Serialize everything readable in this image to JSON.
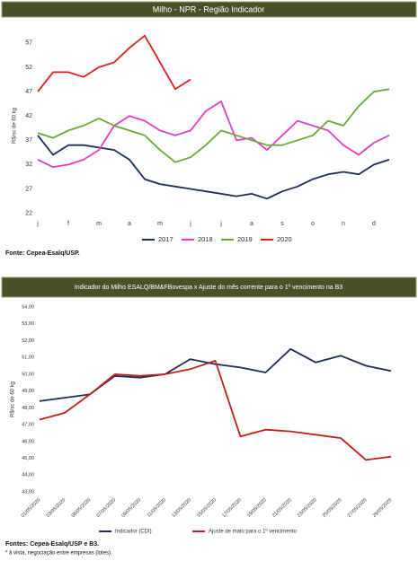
{
  "chart_data": [
    {
      "type": "line",
      "title": "Milho - NPR - Região Indicador",
      "y_label": "R$/sc de 60 kg",
      "categories": [
        "j",
        null,
        "f",
        null,
        "m",
        null,
        "a",
        null,
        "m",
        null,
        "j",
        null,
        "j",
        null,
        "a",
        null,
        "s",
        null,
        "o",
        null,
        "n",
        null,
        "d",
        null
      ],
      "ylim": [
        21,
        59
      ],
      "yticks": [
        22,
        27,
        32,
        37,
        42,
        47,
        52,
        57
      ],
      "grid": false,
      "series": [
        {
          "name": "2017",
          "color": "#1f2d5a",
          "values": [
            38,
            34,
            36,
            36,
            35.5,
            35,
            33,
            29,
            28,
            27.5,
            27,
            26.5,
            26,
            25.5,
            26,
            25,
            26.5,
            27.5,
            29,
            30,
            30.5,
            30,
            32,
            33
          ]
        },
        {
          "name": "2018",
          "color": "#e040c0",
          "values": [
            33,
            31.5,
            32,
            33,
            35,
            40,
            42,
            41,
            39,
            38,
            39,
            43,
            45,
            37,
            37.5,
            35,
            38,
            41,
            40,
            39,
            36,
            34,
            36.5,
            38
          ]
        },
        {
          "name": "2019",
          "color": "#6aaa3a",
          "values": [
            38.5,
            37.5,
            39,
            40,
            41.5,
            40,
            39,
            38,
            35,
            32.5,
            33.5,
            36,
            39,
            38,
            37,
            36,
            36,
            37,
            38,
            41,
            40,
            44,
            47,
            47.5
          ]
        },
        {
          "name": "2020",
          "color": "#e02020",
          "values": [
            47,
            51,
            51,
            50,
            52,
            53,
            56,
            58.5,
            53,
            47.5,
            49.5,
            null,
            null,
            null,
            null,
            null,
            null,
            null,
            null,
            null,
            null,
            null,
            null,
            null
          ]
        }
      ],
      "source": "Fonte: Cepea-Esalq/USP."
    },
    {
      "type": "line",
      "title": "Indicador do Milho ESALQ/BM&FBovespa x Ajuste do mês corrente para o 1º vencimento na B3",
      "y_label": "R$/sc de 60 kg",
      "categories": [
        "01/05/2020",
        "03/05/2020",
        "05/05/2020",
        "07/05/2020",
        "09/05/2020",
        "11/05/2020",
        "13/05/2020",
        "15/05/2020",
        "17/05/2020",
        "19/05/2020",
        "21/05/2020",
        "23/05/2020",
        "25/05/2020",
        "27/05/2020",
        "29/05/2020"
      ],
      "ylim": [
        43,
        54
      ],
      "yticks": [
        {
          "value": 43,
          "label": "43,00"
        },
        {
          "value": 44,
          "label": "44,00"
        },
        {
          "value": 45,
          "label": "45,00"
        },
        {
          "value": 46,
          "label": "46,00"
        },
        {
          "value": 47,
          "label": "47,00"
        },
        {
          "value": 48,
          "label": "48,00"
        },
        {
          "value": 49,
          "label": "49,00"
        },
        {
          "value": 50,
          "label": "50,00"
        },
        {
          "value": 51,
          "label": "51,00"
        },
        {
          "value": 52,
          "label": "52,00"
        },
        {
          "value": 53,
          "label": "53,00"
        },
        {
          "value": 54,
          "label": "54,00"
        }
      ],
      "grid": false,
      "series": [
        {
          "name": "Indicador (CDI)",
          "color": "#1f2d5a",
          "values": [
            48.4,
            48.6,
            48.8,
            49.9,
            49.8,
            50.0,
            50.9,
            50.6,
            50.4,
            50.1,
            51.5,
            50.7,
            51.1,
            50.5,
            50.2
          ]
        },
        {
          "name": "Ajuste de maio para o 1º vencimento",
          "color": "#c0201c",
          "values": [
            47.3,
            47.7,
            48.8,
            50.0,
            49.9,
            50.0,
            50.3,
            50.8,
            46.3,
            46.7,
            46.6,
            46.4,
            46.2,
            44.9,
            45.1
          ]
        }
      ],
      "source": "Fontes: Cepea-Esalq/USP e B3.",
      "note": "* à vista, negociação entre empresas (lotes)."
    }
  ]
}
